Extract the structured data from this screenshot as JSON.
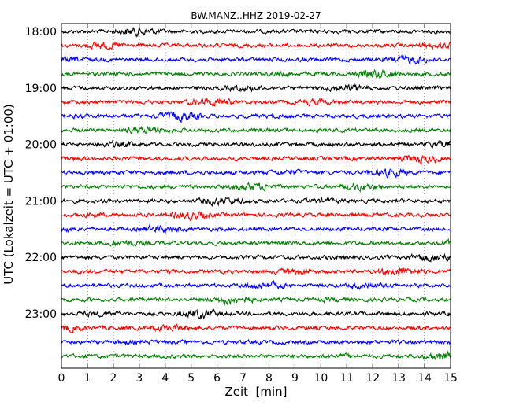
{
  "chart_data": {
    "type": "line",
    "title": "BW.MANZ..HHZ 2019-02-27",
    "xlabel": "Zeit  [min]",
    "ylabel": "UTC (Lokalzeit = UTC + 01:00)",
    "xlim": [
      0,
      15
    ],
    "x_ticks": [
      "0",
      "1",
      "2",
      "3",
      "4",
      "5",
      "6",
      "7",
      "8",
      "9",
      "10",
      "11",
      "12",
      "13",
      "14",
      "15"
    ],
    "y_ticks": [
      "18:00",
      "19:00",
      "20:00",
      "21:00",
      "22:00",
      "23:00"
    ],
    "x_grid": "dotted",
    "trace_interval_min": 15,
    "trace_start": "18:00",
    "trace_count": 24,
    "trace_colors": [
      "#000000",
      "#ff0000",
      "#0000ff",
      "#008000"
    ]
  }
}
